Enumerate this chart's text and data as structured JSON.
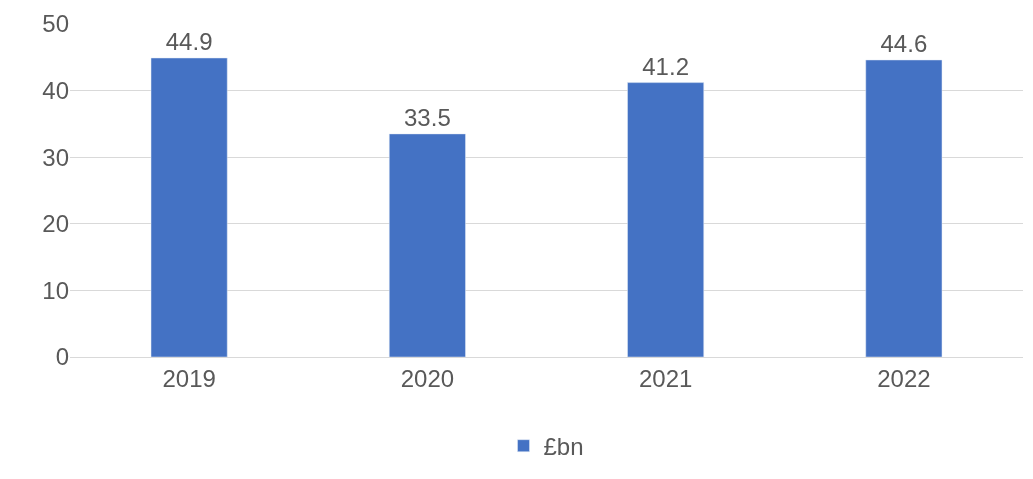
{
  "chart_data": {
    "type": "bar",
    "categories": [
      "2019",
      "2020",
      "2021",
      "2022"
    ],
    "series": [
      {
        "name": "£bn",
        "color": "#4472c4",
        "values": [
          44.9,
          33.5,
          41.2,
          44.6
        ]
      }
    ],
    "ylim": [
      0,
      50
    ],
    "yticks": [
      0,
      10,
      20,
      30,
      40,
      50
    ],
    "grid": "y",
    "legend": "bottom",
    "data_labels": true
  }
}
